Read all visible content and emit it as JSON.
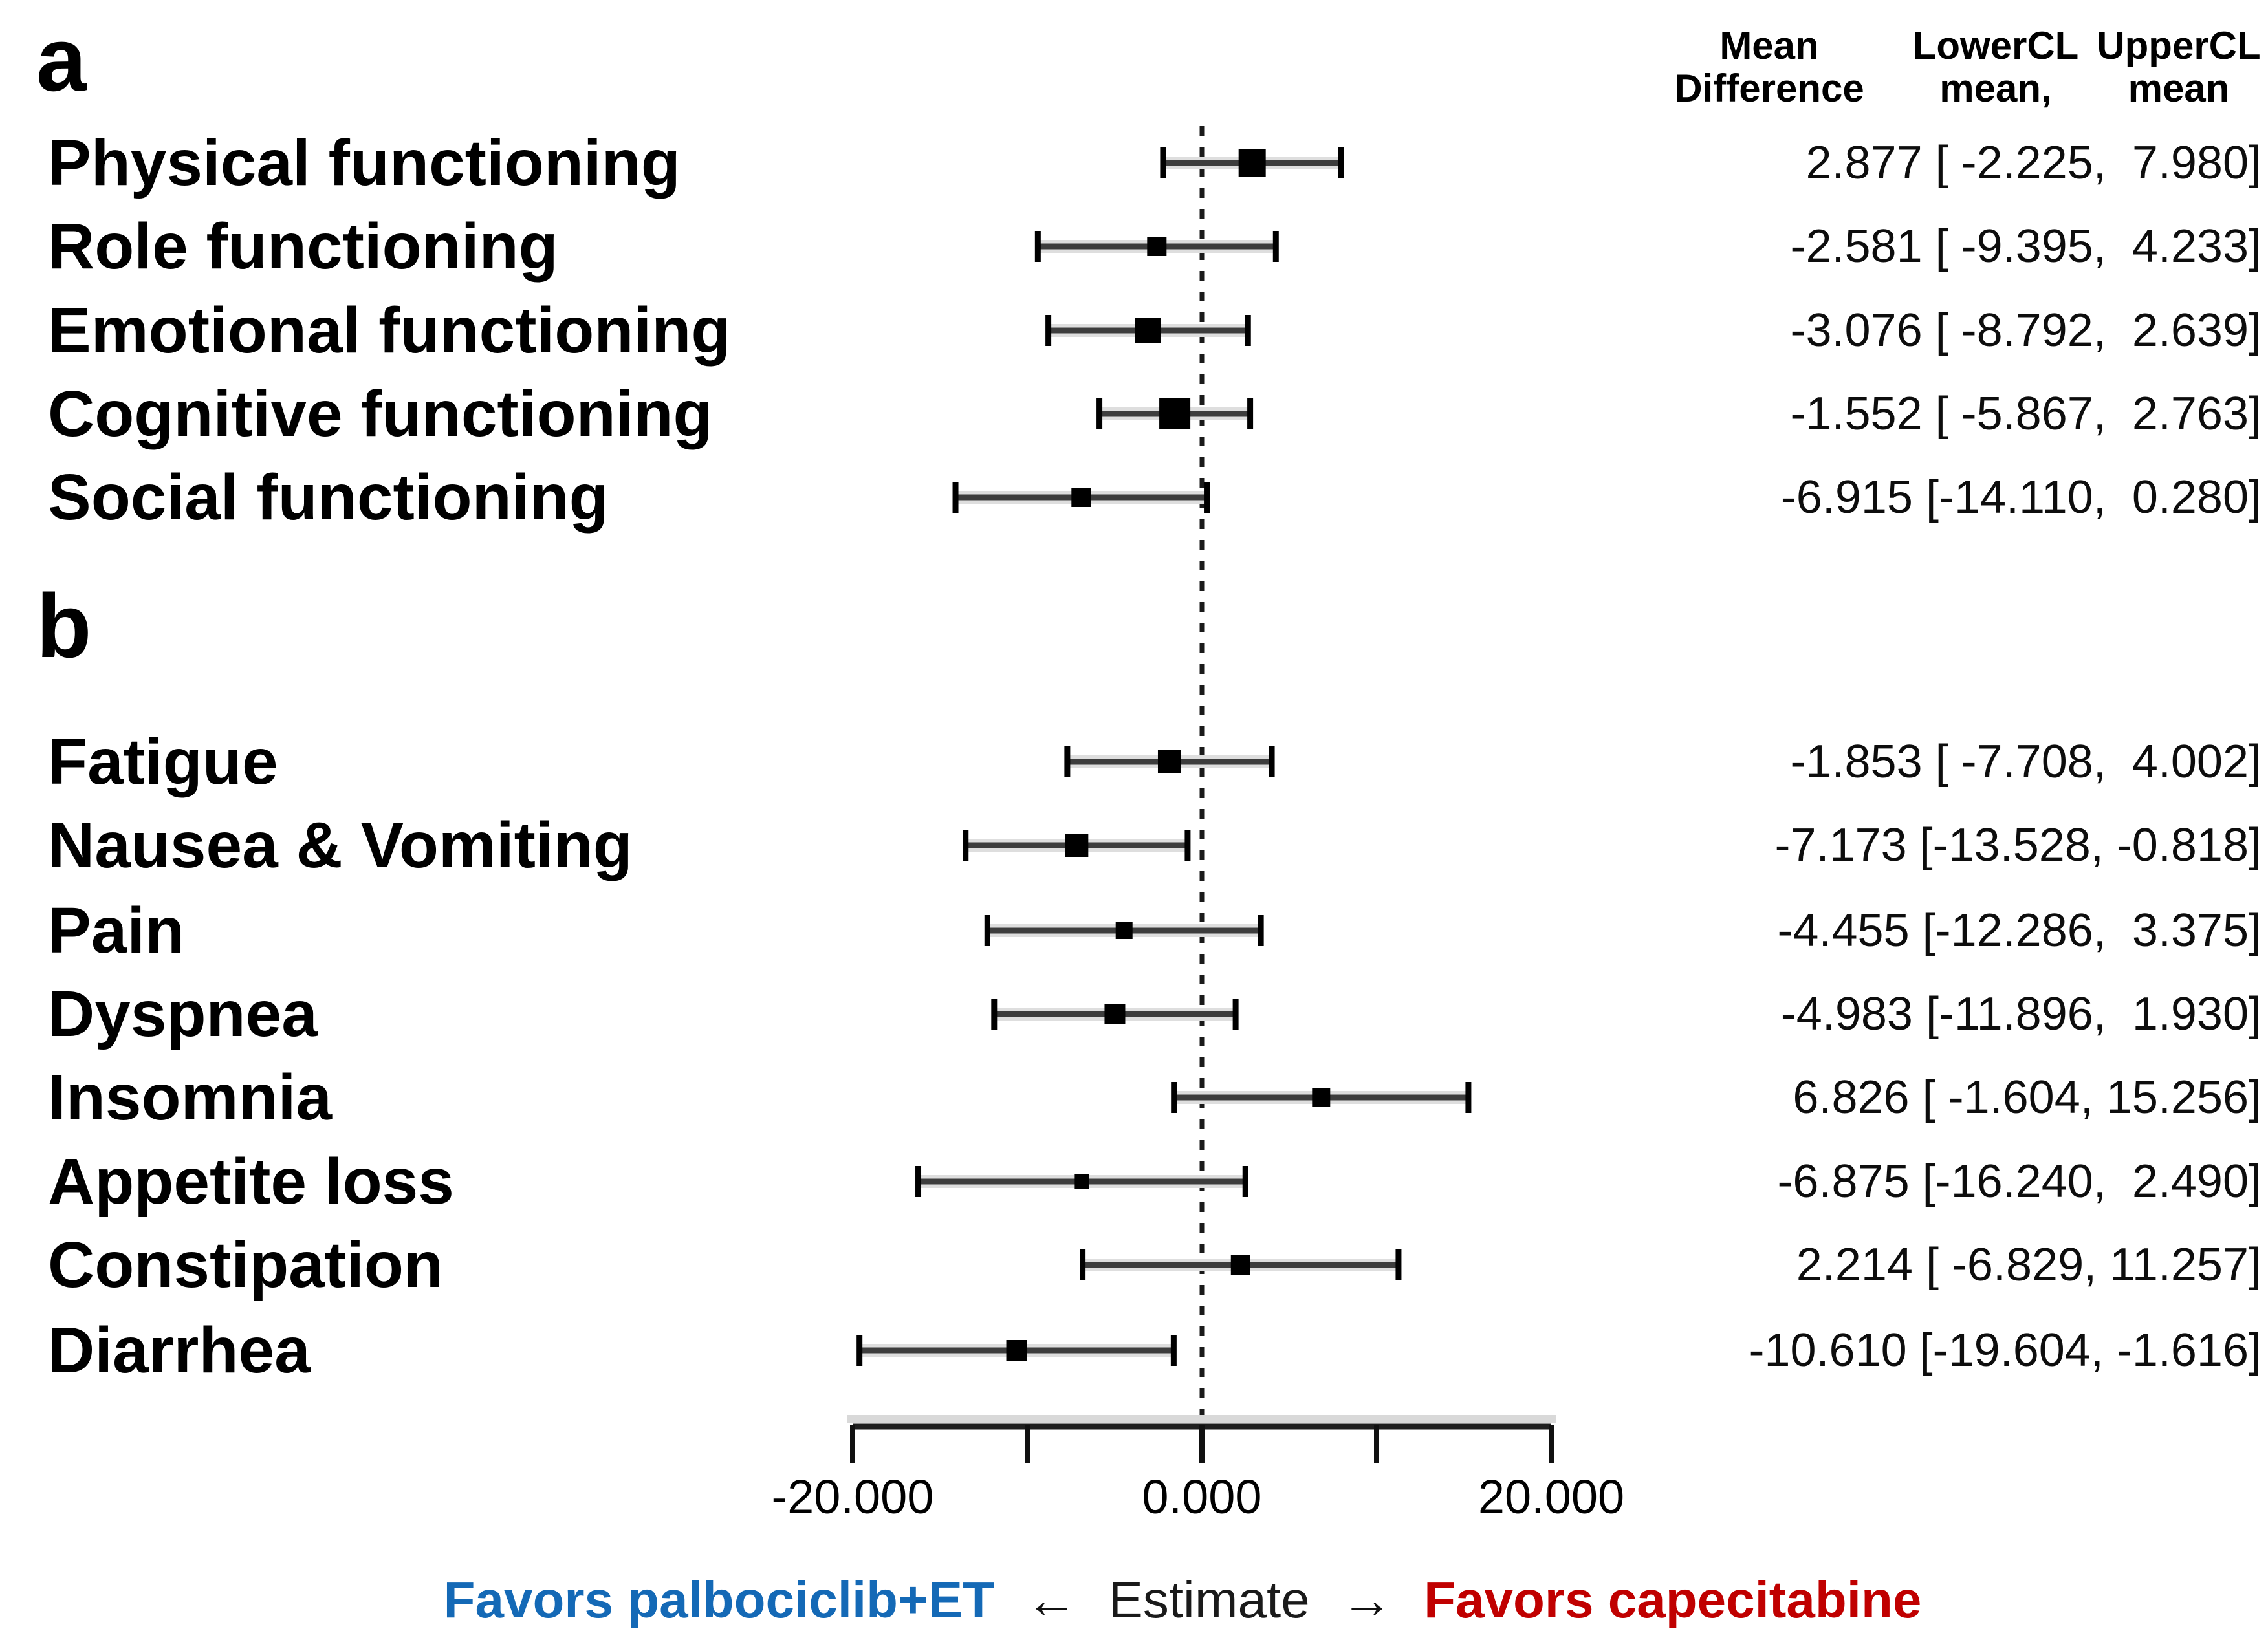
{
  "header": {
    "col1": [
      "Mean",
      "Difference"
    ],
    "col2": [
      "LowerCL",
      "mean,"
    ],
    "col3": [
      "UpperCL",
      "mean"
    ]
  },
  "legend": {
    "left_text": "Favors palbociclib+ET",
    "left_color": "#1469b6",
    "left_arrow": "←",
    "center_text": "Estimate",
    "right_arrow": "→",
    "right_text": "Favors capecitabine",
    "right_color": "#c00000"
  },
  "chart_data": {
    "type": "forest",
    "xlim": [
      -20,
      20
    ],
    "x_ticks": [
      -20,
      -10,
      0,
      10,
      20
    ],
    "x_tick_labels": [
      {
        "value": -20,
        "label": "-20.000"
      },
      {
        "value": 0,
        "label": "0.000"
      },
      {
        "value": 20,
        "label": "20.000"
      }
    ],
    "zero_line": 0,
    "grid": false,
    "marker_color": "#000000",
    "panels": [
      {
        "label": "a",
        "rows": [
          {
            "label": "Physical functioning",
            "mean": 2.877,
            "lower": -2.225,
            "upper": 7.98,
            "display": "2.877 [ -2.225,  7.980]",
            "marker_size": 42
          },
          {
            "label": "Role functioning",
            "mean": -2.581,
            "lower": -9.395,
            "upper": 4.233,
            "display": "-2.581 [ -9.395,  4.233]",
            "marker_size": 30
          },
          {
            "label": "Emotional functioning",
            "mean": -3.076,
            "lower": -8.792,
            "upper": 2.639,
            "display": "-3.076 [ -8.792,  2.639]",
            "marker_size": 40
          },
          {
            "label": "Cognitive functioning",
            "mean": -1.552,
            "lower": -5.867,
            "upper": 2.763,
            "display": "-1.552 [ -5.867,  2.763]",
            "marker_size": 48
          },
          {
            "label": "Social functioning",
            "mean": -6.915,
            "lower": -14.11,
            "upper": 0.28,
            "display": "-6.915 [-14.110,  0.280]",
            "marker_size": 30
          }
        ]
      },
      {
        "label": "b",
        "rows": [
          {
            "label": "Fatigue",
            "mean": -1.853,
            "lower": -7.708,
            "upper": 4.002,
            "display": "-1.853 [ -7.708,  4.002]",
            "marker_size": 36
          },
          {
            "label": "Nausea & Vomiting",
            "mean": -7.173,
            "lower": -13.528,
            "upper": -0.818,
            "display": "-7.173 [-13.528, -0.818]",
            "marker_size": 36
          },
          {
            "label": "Pain",
            "mean": -4.455,
            "lower": -12.286,
            "upper": 3.375,
            "display": "-4.455 [-12.286,  3.375]",
            "marker_size": 26
          },
          {
            "label": "Dyspnea",
            "mean": -4.983,
            "lower": -11.896,
            "upper": 1.93,
            "display": "-4.983 [-11.896,  1.930]",
            "marker_size": 32
          },
          {
            "label": "Insomnia",
            "mean": 6.826,
            "lower": -1.604,
            "upper": 15.256,
            "display": "6.826 [ -1.604, 15.256]",
            "marker_size": 28
          },
          {
            "label": "Appetite loss",
            "mean": -6.875,
            "lower": -16.24,
            "upper": 2.49,
            "display": "-6.875 [-16.240,  2.490]",
            "marker_size": 22
          },
          {
            "label": "Constipation",
            "mean": 2.214,
            "lower": -6.829,
            "upper": 11.257,
            "display": "2.214 [ -6.829, 11.257]",
            "marker_size": 30
          },
          {
            "label": "Diarrhea",
            "mean": -10.61,
            "lower": -19.604,
            "upper": -1.616,
            "display": "-10.610 [-19.604, -1.616]",
            "marker_size": 32
          }
        ]
      }
    ]
  }
}
